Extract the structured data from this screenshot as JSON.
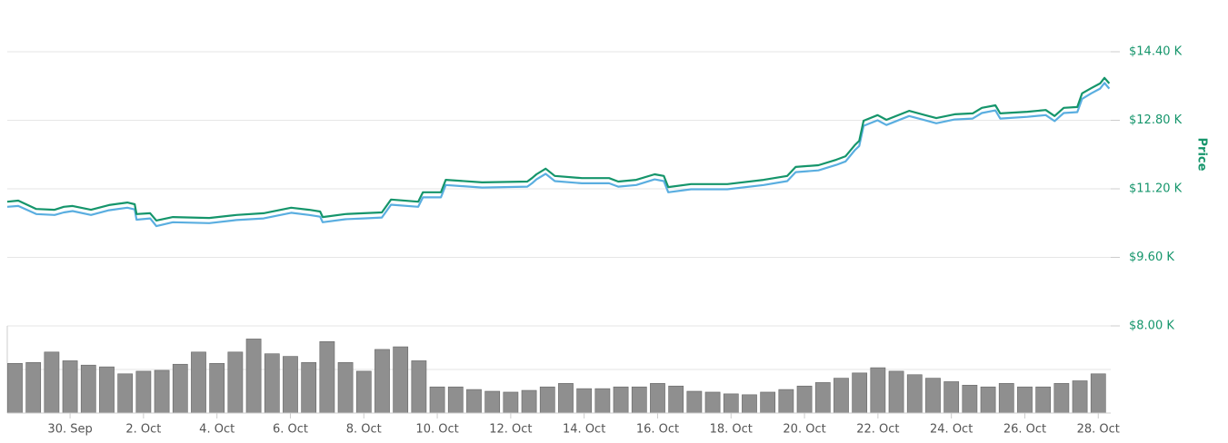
{
  "chart_data": {
    "type": "line",
    "y_axis_title": "Price",
    "xlim": [
      -1.71,
      28.34
    ],
    "xticks": [
      {
        "value": 0,
        "label": "30. Sep"
      },
      {
        "value": 2,
        "label": "2. Oct"
      },
      {
        "value": 4,
        "label": "4. Oct"
      },
      {
        "value": 6,
        "label": "6. Oct"
      },
      {
        "value": 8,
        "label": "8. Oct"
      },
      {
        "value": 10,
        "label": "10. Oct"
      },
      {
        "value": 12,
        "label": "12. Oct"
      },
      {
        "value": 14,
        "label": "14. Oct"
      },
      {
        "value": 16,
        "label": "16. Oct"
      },
      {
        "value": 18,
        "label": "18. Oct"
      },
      {
        "value": 20,
        "label": "20. Oct"
      },
      {
        "value": 22,
        "label": "22. Oct"
      },
      {
        "value": 24,
        "label": "24. Oct"
      },
      {
        "value": 26,
        "label": "26. Oct"
      },
      {
        "value": 28,
        "label": "28. Oct"
      }
    ],
    "ylim": [
      8000,
      14400
    ],
    "yticks": [
      {
        "value": 14400,
        "label": "$14.40 K"
      },
      {
        "value": 12800,
        "label": "$12.80 K"
      },
      {
        "value": 11200,
        "label": "$11.20 K"
      },
      {
        "value": 9600,
        "label": "$9.60 K"
      },
      {
        "value": 8000,
        "label": "$8.00 K"
      }
    ],
    "grid": true,
    "x": [
      -1.71,
      -1.41,
      -0.92,
      -0.42,
      -0.17,
      0.07,
      0.57,
      1.06,
      1.56,
      1.76,
      1.81,
      2.18,
      2.35,
      2.8,
      3.79,
      4.53,
      5.27,
      6.02,
      6.51,
      6.81,
      6.88,
      7.5,
      7.99,
      8.49,
      8.74,
      9.48,
      9.61,
      10.1,
      10.23,
      11.22,
      12.45,
      12.58,
      12.7,
      12.95,
      13.2,
      13.94,
      14.68,
      14.93,
      15.42,
      15.92,
      16.17,
      16.29,
      16.91,
      17.9,
      18.89,
      19.53,
      19.76,
      20.38,
      20.87,
      21.12,
      21.37,
      21.49,
      21.61,
      21.99,
      22.23,
      22.85,
      23.59,
      24.09,
      24.58,
      24.83,
      25.2,
      25.33,
      26.07,
      26.57,
      26.81,
      27.06,
      27.43,
      27.56,
      27.81,
      28.05,
      28.17,
      28.3
    ],
    "series": [
      {
        "color": "#5aaee0",
        "values": [
          10780,
          10800,
          10610,
          10590,
          10650,
          10680,
          10590,
          10700,
          10760,
          10720,
          10480,
          10510,
          10330,
          10420,
          10400,
          10470,
          10510,
          10640,
          10590,
          10550,
          10420,
          10490,
          10510,
          10530,
          10830,
          10780,
          11000,
          11000,
          11290,
          11230,
          11250,
          11330,
          11420,
          11550,
          11380,
          11330,
          11330,
          11250,
          11290,
          11420,
          11380,
          11120,
          11190,
          11190,
          11290,
          11380,
          11590,
          11630,
          11760,
          11840,
          12100,
          12200,
          12670,
          12800,
          12690,
          12900,
          12730,
          12820,
          12840,
          12970,
          13030,
          12840,
          12880,
          12920,
          12780,
          12970,
          12990,
          13300,
          13430,
          13540,
          13670,
          13540
        ]
      },
      {
        "color": "#15956b",
        "values": [
          10900,
          10925,
          10730,
          10710,
          10780,
          10800,
          10710,
          10820,
          10880,
          10840,
          10610,
          10630,
          10460,
          10540,
          10520,
          10590,
          10630,
          10760,
          10710,
          10670,
          10540,
          10610,
          10630,
          10650,
          10950,
          10900,
          11120,
          11120,
          11410,
          11350,
          11370,
          11450,
          11540,
          11670,
          11500,
          11450,
          11450,
          11370,
          11410,
          11540,
          11500,
          11240,
          11310,
          11310,
          11410,
          11500,
          11710,
          11750,
          11880,
          11960,
          12220,
          12320,
          12790,
          12920,
          12810,
          13020,
          12850,
          12940,
          12960,
          13090,
          13150,
          12960,
          13000,
          13040,
          12900,
          13090,
          13110,
          13430,
          13550,
          13660,
          13790,
          13660
        ]
      }
    ],
    "volume": {
      "color": "#8f8f8f",
      "ylim": [
        0,
        100
      ],
      "x": [
        -1.5,
        -1,
        -0.5,
        0,
        0.5,
        1,
        1.5,
        2,
        2.5,
        3,
        3.5,
        4,
        4.5,
        5,
        5.5,
        6,
        6.5,
        7,
        7.5,
        8,
        8.5,
        9,
        9.5,
        10,
        10.5,
        11,
        11.5,
        12,
        12.5,
        13,
        13.5,
        14,
        14.5,
        15,
        15.5,
        16,
        16.5,
        17,
        17.5,
        18,
        18.5,
        19,
        19.5,
        20,
        20.5,
        21,
        21.5,
        22,
        22.5,
        23,
        23.5,
        24,
        24.5,
        25,
        25.5,
        26,
        26.5,
        27,
        27.5,
        28
      ],
      "values": [
        57,
        58,
        70,
        60,
        55,
        53,
        45,
        48,
        49,
        56,
        70,
        57,
        70,
        85,
        68,
        65,
        58,
        82,
        58,
        48,
        73,
        76,
        60,
        30,
        30,
        27,
        25,
        24,
        26,
        30,
        34,
        28,
        28,
        30,
        30,
        34,
        31,
        25,
        24,
        22,
        21,
        24,
        27,
        31,
        35,
        40,
        46,
        52,
        48,
        44,
        40,
        36,
        32,
        30,
        34,
        30,
        30,
        34,
        37,
        45
      ]
    }
  }
}
